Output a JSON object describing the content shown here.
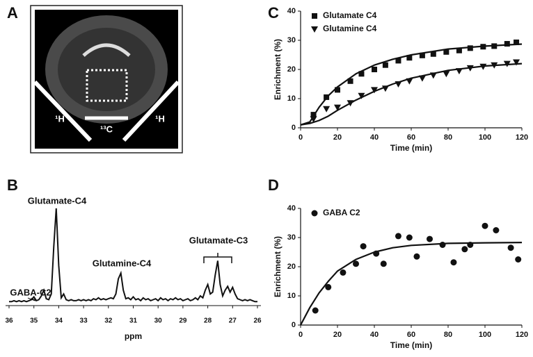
{
  "image_panel": {
    "label": "A",
    "labels": [
      "¹H",
      "¹³C",
      "¹H"
    ]
  },
  "chart_data": [
    {
      "type": "line",
      "panel_label": "B",
      "xlabel": "ppm",
      "xlim": [
        36,
        26
      ],
      "xticks": [
        36,
        35,
        34,
        33,
        32,
        31,
        30,
        29,
        28,
        27,
        26
      ],
      "annotations": [
        "Glutamate-C4",
        "GABA-C2",
        "Glutamine-C4",
        "Glutamate-C3"
      ],
      "color": "#111111",
      "x": [
        36.0,
        35.9,
        35.8,
        35.7,
        35.6,
        35.5,
        35.4,
        35.3,
        35.2,
        35.1,
        35.0,
        34.9,
        34.8,
        34.7,
        34.6,
        34.5,
        34.4,
        34.3,
        34.2,
        34.1,
        34.0,
        33.9,
        33.8,
        33.7,
        33.6,
        33.5,
        33.4,
        33.3,
        33.2,
        33.1,
        33.0,
        32.9,
        32.8,
        32.7,
        32.6,
        32.5,
        32.4,
        32.3,
        32.2,
        32.1,
        32.0,
        31.9,
        31.8,
        31.7,
        31.6,
        31.5,
        31.4,
        31.3,
        31.2,
        31.1,
        31.0,
        30.9,
        30.8,
        30.7,
        30.6,
        30.5,
        30.4,
        30.3,
        30.2,
        30.1,
        30.0,
        29.9,
        29.8,
        29.7,
        29.6,
        29.5,
        29.4,
        29.3,
        29.2,
        29.1,
        29.0,
        28.9,
        28.8,
        28.7,
        28.6,
        28.5,
        28.4,
        28.3,
        28.2,
        28.1,
        28.0,
        27.9,
        27.8,
        27.7,
        27.6,
        27.5,
        27.4,
        27.3,
        27.2,
        27.1,
        27.0,
        26.9,
        26.8,
        26.7,
        26.6,
        26.5,
        26.4,
        26.3,
        26.2,
        26.1,
        26.0
      ],
      "values": [
        2,
        2,
        3,
        2,
        3,
        2,
        3,
        2,
        3,
        4,
        7,
        3,
        4,
        8,
        14,
        5,
        4,
        10,
        60,
        100,
        40,
        6,
        10,
        4,
        3,
        4,
        3,
        3,
        4,
        3,
        4,
        3,
        4,
        3,
        5,
        4,
        6,
        4,
        5,
        4,
        5,
        6,
        5,
        10,
        26,
        32,
        14,
        5,
        6,
        4,
        7,
        4,
        5,
        3,
        6,
        4,
        5,
        3,
        4,
        5,
        3,
        6,
        4,
        5,
        3,
        5,
        4,
        6,
        4,
        5,
        3,
        4,
        5,
        3,
        4,
        6,
        4,
        8,
        6,
        14,
        20,
        10,
        12,
        30,
        45,
        20,
        8,
        14,
        18,
        12,
        17,
        10,
        5,
        4,
        3,
        4,
        3,
        4,
        3,
        2,
        2
      ]
    },
    {
      "type": "scatter",
      "panel_label": "C",
      "xlabel": "Time (min)",
      "ylabel": "Enrichment (%)",
      "xlim": [
        0,
        120
      ],
      "xticks": [
        0,
        20,
        40,
        60,
        80,
        100,
        120
      ],
      "ylim": [
        0,
        40
      ],
      "yticks": [
        0,
        10,
        20,
        30,
        40
      ],
      "series": [
        {
          "name": "Glutamate C4",
          "color": "#111111",
          "marker": "square",
          "x": [
            7,
            14,
            20,
            27,
            33,
            40,
            46,
            53,
            59,
            66,
            72,
            79,
            86,
            92,
            99,
            105,
            112,
            117
          ],
          "values": [
            4.5,
            10.5,
            13,
            16,
            18.5,
            20,
            21.5,
            23,
            24,
            24.8,
            25.3,
            26,
            26.5,
            27.3,
            27.8,
            28,
            28.8,
            29.3
          ]
        },
        {
          "name": "Glutamine C4",
          "color": "#111111",
          "marker": "triangle",
          "x": [
            7,
            14,
            20,
            27,
            33,
            40,
            46,
            53,
            59,
            66,
            72,
            79,
            86,
            92,
            99,
            105,
            112,
            117
          ],
          "values": [
            3,
            6.5,
            7,
            8.5,
            11,
            13,
            13.5,
            15,
            16,
            17,
            18,
            18.5,
            19.5,
            20.5,
            21,
            21.5,
            22,
            22.5
          ]
        }
      ],
      "fits": [
        {
          "x": [
            0,
            5,
            10,
            15,
            20,
            30,
            40,
            50,
            60,
            80,
            100,
            120
          ],
          "values": [
            1,
            2,
            7,
            11,
            14,
            18.5,
            21.5,
            23.5,
            25,
            27,
            28,
            28.7
          ]
        },
        {
          "x": [
            0,
            5,
            10,
            15,
            20,
            30,
            40,
            50,
            60,
            80,
            100,
            120
          ],
          "values": [
            1,
            1.5,
            2.5,
            4,
            6,
            9.5,
            12.5,
            15,
            17,
            19.7,
            21.2,
            22
          ]
        }
      ]
    },
    {
      "type": "scatter",
      "panel_label": "D",
      "xlabel": "Time (min)",
      "ylabel": "Enrichment (%)",
      "xlim": [
        0,
        120
      ],
      "xticks": [
        0,
        20,
        40,
        60,
        80,
        100,
        120
      ],
      "ylim": [
        0,
        40
      ],
      "yticks": [
        0,
        10,
        20,
        30,
        40
      ],
      "series": [
        {
          "name": "GABA C2",
          "color": "#111111",
          "marker": "circle",
          "x": [
            8,
            15,
            23,
            30,
            34,
            41,
            45,
            53,
            59,
            63,
            70,
            77,
            83,
            89,
            92,
            100,
            106,
            114,
            118
          ],
          "values": [
            5,
            13,
            18,
            21,
            27,
            24.5,
            21,
            30.5,
            30,
            23.5,
            29.5,
            27.5,
            21.5,
            26,
            27.5,
            34,
            32.5,
            26.5,
            22.5
          ]
        }
      ],
      "fits": [
        {
          "x": [
            0,
            5,
            10,
            15,
            20,
            30,
            40,
            50,
            60,
            80,
            100,
            120
          ],
          "values": [
            0,
            6,
            11,
            15,
            18.5,
            22.5,
            25,
            26.5,
            27.3,
            28,
            28.2,
            28.3
          ]
        }
      ]
    }
  ]
}
